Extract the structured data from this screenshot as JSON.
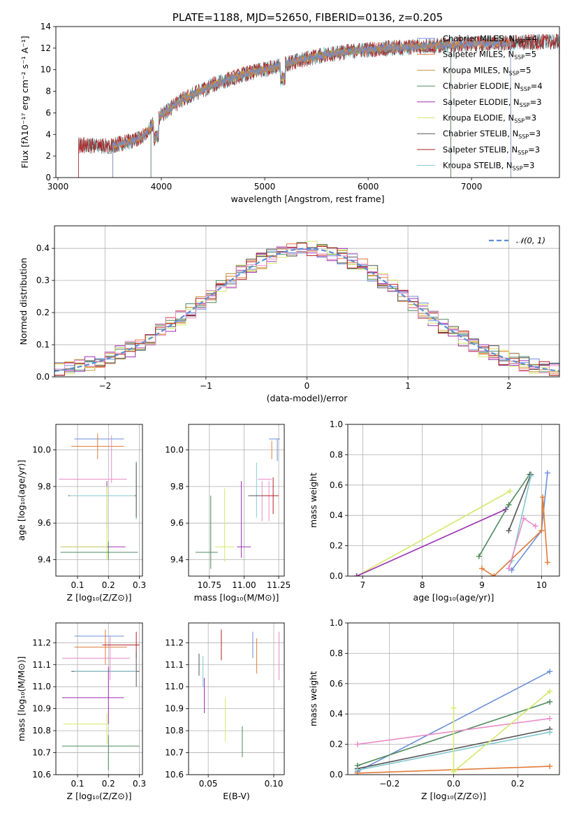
{
  "colors": {
    "Chabrier MILES": "#6a8fd8",
    "Salpeter MILES": "#e07b39",
    "Kroupa MILES": "#c49a3a",
    "Chabrier ELODIE": "#4f8a5c",
    "Salpeter ELODIE": "#9b30b0",
    "Kroupa ELODIE": "#d6e86a",
    "Chabrier STELIB": "#555555",
    "Salpeter STELIB": "#b22222",
    "Kroupa STELIB": "#80c8d0",
    "pink": "#e88cc8",
    "normal": "#5b8ed6"
  },
  "chart_data": [
    {
      "id": "spectrum",
      "type": "line",
      "title": "PLATE=1188, MJD=52650, FIBERID=0136, z=0.205",
      "xlabel": "wavelength [Angstrom, rest frame]",
      "ylabel": "Flux [fλ10⁻¹⁷ erg cm⁻² s⁻¹ A⁻¹]",
      "xlim": [
        2980,
        7850
      ],
      "ylim": [
        0,
        14
      ],
      "xticks": [
        "3000",
        "4000",
        "5000",
        "6000",
        "7000"
      ],
      "xtick_values": [
        3000,
        4000,
        5000,
        6000,
        7000
      ],
      "yticks": [
        "0",
        "2",
        "4",
        "6",
        "8",
        "10",
        "12",
        "14"
      ],
      "ytick_values": [
        0,
        2,
        4,
        6,
        8,
        10,
        12,
        14
      ],
      "grid": false,
      "legend_position": "right",
      "legend": [
        {
          "label": "Chabrier MILES, N",
          "sub": "SSP",
          "suffix": "=4",
          "color_key": "Chabrier MILES"
        },
        {
          "label": "Salpeter MILES, N",
          "sub": "SSP",
          "suffix": "=5",
          "color_key": "Salpeter MILES"
        },
        {
          "label": "Kroupa MILES, N",
          "sub": "SSP",
          "suffix": "=5",
          "color_key": "Kroupa MILES"
        },
        {
          "label": "Chabrier ELODIE, N",
          "sub": "SSP",
          "suffix": "=4",
          "color_key": "Chabrier ELODIE"
        },
        {
          "label": "Salpeter ELODIE, N",
          "sub": "SSP",
          "suffix": "=3",
          "color_key": "Salpeter ELODIE"
        },
        {
          "label": "Kroupa ELODIE, N",
          "sub": "SSP",
          "suffix": "=3",
          "color_key": "Kroupa ELODIE"
        },
        {
          "label": "Chabrier STELIB, N",
          "sub": "SSP",
          "suffix": "=3",
          "color_key": "Chabrier STELIB"
        },
        {
          "label": "Salpeter STELIB, N",
          "sub": "SSP",
          "suffix": "=3",
          "color_key": "Salpeter STELIB"
        },
        {
          "label": "Kroupa STELIB, N",
          "sub": "SSP",
          "suffix": "=3",
          "color_key": "Kroupa STELIB"
        }
      ],
      "data_trend": {
        "wavelength": [
          3200,
          3500,
          3800,
          4000,
          4200,
          4500,
          4800,
          5000,
          5300,
          5600,
          5900,
          6200,
          6600,
          7000,
          7400,
          7800
        ],
        "flux": [
          3.0,
          2.9,
          3.6,
          5.8,
          7.2,
          8.6,
          9.6,
          10.0,
          10.8,
          11.4,
          11.8,
          12.0,
          12.2,
          12.4,
          12.5,
          12.6
        ]
      }
    },
    {
      "id": "residual-histogram",
      "type": "step",
      "xlabel": "(data-model)/error",
      "ylabel": "Normed distribution",
      "xlim": [
        -2.5,
        2.5
      ],
      "ylim": [
        0,
        0.47
      ],
      "xticks": [
        "−2",
        "−1",
        "0",
        "1",
        "2"
      ],
      "xtick_values": [
        -2,
        -1,
        0,
        1,
        2
      ],
      "yticks": [
        "0.0",
        "0.1",
        "0.2",
        "0.3",
        "0.4"
      ],
      "ytick_values": [
        0,
        0.1,
        0.2,
        0.3,
        0.4
      ],
      "grid": true,
      "legend_position": "top-right",
      "legend_label": "𝒩(0, 1)",
      "bin_width": 0.1
    },
    {
      "id": "age-vs-Z",
      "type": "errorbar",
      "xlabel": "Z [log₁₀(Z/Z⊙)]",
      "ylabel": "age  [log₁₀(age/yr)]",
      "xlim": [
        0.03,
        0.31
      ],
      "ylim": [
        9.31,
        10.14
      ],
      "xticks": [
        "0.1",
        "0.2",
        "0.3"
      ],
      "xtick_values": [
        0.1,
        0.2,
        0.3
      ],
      "yticks": [
        "9.4",
        "9.6",
        "9.8",
        "10.0"
      ],
      "ytick_values": [
        9.4,
        9.6,
        9.8,
        10.0
      ],
      "grid": true,
      "points": [
        {
          "x": 0.17,
          "xerr": 0.08,
          "y": 10.06,
          "yerr": 0.0,
          "c": "Chabrier MILES"
        },
        {
          "x": 0.165,
          "xerr": 0.085,
          "y": 10.02,
          "yerr": 0.07,
          "c": "Salpeter MILES"
        },
        {
          "x": 0.15,
          "xerr": 0.11,
          "y": 9.84,
          "yerr": 0.0,
          "c": "pink"
        },
        {
          "x": 0.21,
          "xerr": 0.0,
          "y": 9.95,
          "yerr": 0.13,
          "c": "pink"
        },
        {
          "x": 0.29,
          "xerr": 0.0,
          "y": 9.78,
          "yerr": 0.16,
          "c": "Kroupa STELIB"
        },
        {
          "x": 0.29,
          "xerr": 0.0,
          "y": 9.78,
          "yerr": 0.15,
          "c": "Chabrier STELIB"
        },
        {
          "x": 0.195,
          "xerr": 0.0,
          "y": 9.7,
          "yerr": 0.13,
          "c": "Salpeter ELODIE"
        },
        {
          "x": 0.18,
          "xerr": 0.11,
          "y": 9.75,
          "yerr": 0.0,
          "c": "Chabrier STELIB"
        },
        {
          "x": 0.18,
          "xerr": 0.105,
          "y": 9.75,
          "yerr": 0.0,
          "c": "Kroupa STELIB"
        },
        {
          "x": 0.15,
          "xerr": 0.105,
          "y": 9.47,
          "yerr": 0.0,
          "c": "Salpeter ELODIE"
        },
        {
          "x": 0.12,
          "xerr": 0.075,
          "y": 9.47,
          "yerr": 0.0,
          "c": "Kroupa ELODIE"
        },
        {
          "x": 0.195,
          "xerr": 0.0,
          "y": 9.6,
          "yerr": 0.2,
          "c": "Kroupa ELODIE"
        },
        {
          "x": 0.17,
          "xerr": 0.125,
          "y": 9.44,
          "yerr": 0.0,
          "c": "Chabrier ELODIE"
        },
        {
          "x": 0.2,
          "xerr": 0.0,
          "y": 9.45,
          "yerr": 0.05,
          "c": "Chabrier ELODIE"
        }
      ]
    },
    {
      "id": "age-vs-mass",
      "type": "errorbar",
      "xlabel": "mass [log₁₀(M/M⊙)]",
      "ylabel": "",
      "xlim": [
        10.6,
        11.29
      ],
      "ylim": [
        9.31,
        10.14
      ],
      "xticks": [
        "10.75",
        "11.00",
        "11.25"
      ],
      "xtick_values": [
        10.75,
        11.0,
        11.25
      ],
      "yticks": [
        "9.4",
        "9.6",
        "9.8",
        "10.0"
      ],
      "ytick_values": [
        9.4,
        9.6,
        9.8,
        10.0
      ],
      "grid": true,
      "points": [
        {
          "x": 11.22,
          "xerr": 0.04,
          "y": 10.06,
          "yerr": 0.0,
          "c": "Chabrier MILES"
        },
        {
          "x": 11.24,
          "xerr": 0.0,
          "y": 10.0,
          "yerr": 0.06,
          "c": "Chabrier MILES"
        },
        {
          "x": 11.2,
          "xerr": 0.0,
          "y": 10.0,
          "yerr": 0.05,
          "c": "Salpeter MILES"
        },
        {
          "x": 11.15,
          "xerr": 0.05,
          "y": 9.84,
          "yerr": 0.0,
          "c": "pink"
        },
        {
          "x": 11.13,
          "xerr": 0.0,
          "y": 9.72,
          "yerr": 0.11,
          "c": "pink"
        },
        {
          "x": 11.18,
          "xerr": 0.0,
          "y": 9.72,
          "yerr": 0.11,
          "c": "pink"
        },
        {
          "x": 11.09,
          "xerr": 0.0,
          "y": 9.78,
          "yerr": 0.15,
          "c": "Kroupa STELIB"
        },
        {
          "x": 11.19,
          "xerr": 0.06,
          "y": 9.75,
          "yerr": 0.0,
          "c": "Salpeter STELIB"
        },
        {
          "x": 11.21,
          "xerr": 0.0,
          "y": 9.75,
          "yerr": 0.1,
          "c": "Salpeter STELIB"
        },
        {
          "x": 11.08,
          "xerr": 0.05,
          "y": 9.75,
          "yerr": 0.0,
          "c": "Chabrier STELIB"
        },
        {
          "x": 10.98,
          "xerr": 0.0,
          "y": 9.62,
          "yerr": 0.21,
          "c": "Salpeter ELODIE"
        },
        {
          "x": 11.0,
          "xerr": 0.05,
          "y": 9.47,
          "yerr": 0.0,
          "c": "Salpeter ELODIE"
        },
        {
          "x": 10.86,
          "xerr": 0.0,
          "y": 9.59,
          "yerr": 0.2,
          "c": "Kroupa ELODIE"
        },
        {
          "x": 10.86,
          "xerr": 0.07,
          "y": 9.47,
          "yerr": 0.0,
          "c": "Kroupa ELODIE"
        },
        {
          "x": 10.76,
          "xerr": 0.0,
          "y": 9.55,
          "yerr": 0.2,
          "c": "Chabrier ELODIE"
        },
        {
          "x": 10.73,
          "xerr": 0.08,
          "y": 9.44,
          "yerr": 0.0,
          "c": "Chabrier ELODIE"
        }
      ]
    },
    {
      "id": "massweight-vs-age",
      "type": "line",
      "xlabel": "age  [log₁₀(age/yr)]",
      "ylabel": "mass weight",
      "xlim": [
        6.75,
        10.3
      ],
      "ylim": [
        0,
        1.0
      ],
      "xticks": [
        "7",
        "8",
        "9",
        "10"
      ],
      "xtick_values": [
        7,
        8,
        9,
        10
      ],
      "yticks": [
        "0.0",
        "0.2",
        "0.4",
        "0.6",
        "0.8",
        "1.0"
      ],
      "ytick_values": [
        0,
        0.2,
        0.4,
        0.6,
        0.8,
        1.0
      ],
      "grid": true,
      "series": [
        {
          "c": "Kroupa ELODIE",
          "x": [
            6.9,
            9.47
          ],
          "y": [
            0.0,
            0.56
          ]
        },
        {
          "c": "Salpeter ELODIE",
          "x": [
            6.9,
            9.4
          ],
          "y": [
            0.0,
            0.44
          ]
        },
        {
          "c": "Chabrier ELODIE",
          "x": [
            8.95,
            9.45,
            9.8
          ],
          "y": [
            0.13,
            0.47,
            0.67
          ]
        },
        {
          "c": "Chabrier STELIB",
          "x": [
            9.45,
            9.82
          ],
          "y": [
            0.3,
            0.67
          ]
        },
        {
          "c": "Kroupa STELIB",
          "x": [
            9.5,
            9.82
          ],
          "y": [
            0.1,
            0.66
          ]
        },
        {
          "c": "Chabrier MILES",
          "x": [
            9.5,
            10.0,
            10.1
          ],
          "y": [
            0.04,
            0.3,
            0.68
          ]
        },
        {
          "c": "Salpeter MILES",
          "x": [
            9.0,
            9.2,
            10.0,
            10.02,
            10.1
          ],
          "y": [
            0.05,
            0.0,
            0.3,
            0.52,
            0.09
          ]
        },
        {
          "c": "pink",
          "x": [
            9.45,
            9.7,
            9.9
          ],
          "y": [
            0.05,
            0.38,
            0.33
          ]
        }
      ]
    },
    {
      "id": "mass-vs-Z",
      "type": "errorbar",
      "xlabel": "Z [log₁₀(Z/Z⊙)]",
      "ylabel": "mass [log₁₀(M/M⊙)]",
      "xlim": [
        0.03,
        0.31
      ],
      "ylim": [
        10.6,
        11.29
      ],
      "xticks": [
        "0.1",
        "0.2",
        "0.3"
      ],
      "xtick_values": [
        0.1,
        0.2,
        0.3
      ],
      "yticks": [
        "10.6",
        "10.7",
        "10.8",
        "10.9",
        "11.0",
        "11.1",
        "11.2"
      ],
      "ytick_values": [
        10.6,
        10.7,
        10.8,
        10.9,
        11.0,
        11.1,
        11.2
      ],
      "grid": true,
      "points": [
        {
          "x": 0.17,
          "xerr": 0.08,
          "y": 11.23,
          "yerr": 0.0,
          "c": "Chabrier MILES"
        },
        {
          "x": 0.19,
          "xerr": 0.0,
          "y": 11.18,
          "yerr": 0.08,
          "c": "Salpeter MILES"
        },
        {
          "x": 0.175,
          "xerr": 0.085,
          "y": 11.18,
          "yerr": 0.0,
          "c": "Salpeter MILES"
        },
        {
          "x": 0.16,
          "xerr": 0.11,
          "y": 11.13,
          "yerr": 0.0,
          "c": "pink"
        },
        {
          "x": 0.205,
          "xerr": 0.0,
          "y": 11.13,
          "yerr": 0.1,
          "c": "pink"
        },
        {
          "x": 0.24,
          "xerr": 0.06,
          "y": 11.19,
          "yerr": 0.0,
          "c": "Salpeter STELIB"
        },
        {
          "x": 0.29,
          "xerr": 0.0,
          "y": 11.19,
          "yerr": 0.06,
          "c": "Salpeter STELIB"
        },
        {
          "x": 0.29,
          "xerr": 0.0,
          "y": 11.08,
          "yerr": 0.08,
          "c": "Chabrier STELIB"
        },
        {
          "x": 0.19,
          "xerr": 0.11,
          "y": 11.07,
          "yerr": 0.0,
          "c": "Chabrier STELIB"
        },
        {
          "x": 0.19,
          "xerr": 0.1,
          "y": 11.07,
          "yerr": 0.0,
          "c": "Kroupa STELIB"
        },
        {
          "x": 0.15,
          "xerr": 0.1,
          "y": 10.95,
          "yerr": 0.0,
          "c": "Salpeter ELODIE"
        },
        {
          "x": 0.2,
          "xerr": 0.0,
          "y": 10.96,
          "yerr": 0.13,
          "c": "Salpeter ELODIE"
        },
        {
          "x": 0.125,
          "xerr": 0.07,
          "y": 10.83,
          "yerr": 0.0,
          "c": "Kroupa ELODIE"
        },
        {
          "x": 0.195,
          "xerr": 0.0,
          "y": 10.81,
          "yerr": 0.07,
          "c": "Kroupa ELODIE"
        },
        {
          "x": 0.175,
          "xerr": 0.125,
          "y": 10.73,
          "yerr": 0.0,
          "c": "Chabrier ELODIE"
        },
        {
          "x": 0.2,
          "xerr": 0.0,
          "y": 10.7,
          "yerr": 0.08,
          "c": "Chabrier ELODIE"
        }
      ]
    },
    {
      "id": "mass-vs-EBV",
      "type": "errorbar",
      "xlabel": "E(B-V)",
      "ylabel": "",
      "xlim": [
        0.035,
        0.108
      ],
      "ylim": [
        10.6,
        11.29
      ],
      "xticks": [
        "0.05",
        "0.10"
      ],
      "xtick_values": [
        0.05,
        0.1
      ],
      "yticks": [
        "10.6",
        "10.7",
        "10.8",
        "10.9",
        "11.0",
        "11.1",
        "11.2"
      ],
      "ytick_values": [
        10.6,
        10.7,
        10.8,
        10.9,
        11.0,
        11.1,
        11.2
      ],
      "grid": true,
      "points": [
        {
          "x": 0.043,
          "xerr": 0.0,
          "y": 11.1,
          "yerr": 0.05,
          "c": "Chabrier STELIB"
        },
        {
          "x": 0.046,
          "xerr": 0.0,
          "y": 11.07,
          "yerr": 0.07,
          "c": "Kroupa STELIB"
        },
        {
          "x": 0.047,
          "xerr": 0.0,
          "y": 10.96,
          "yerr": 0.08,
          "c": "Salpeter ELODIE"
        },
        {
          "x": 0.06,
          "xerr": 0.0,
          "y": 11.19,
          "yerr": 0.07,
          "c": "Salpeter STELIB"
        },
        {
          "x": 0.063,
          "xerr": 0.0,
          "y": 10.85,
          "yerr": 0.1,
          "c": "Kroupa ELODIE"
        },
        {
          "x": 0.076,
          "xerr": 0.0,
          "y": 10.75,
          "yerr": 0.07,
          "c": "Chabrier ELODIE"
        },
        {
          "x": 0.084,
          "xerr": 0.0,
          "y": 11.19,
          "yerr": 0.06,
          "c": "Chabrier MILES"
        },
        {
          "x": 0.087,
          "xerr": 0.0,
          "y": 11.14,
          "yerr": 0.08,
          "c": "Salpeter MILES"
        },
        {
          "x": 0.104,
          "xerr": 0.0,
          "y": 11.14,
          "yerr": 0.11,
          "c": "pink"
        }
      ]
    },
    {
      "id": "massweight-vs-Z",
      "type": "line",
      "xlabel": "Z [log₁₀(Z/Z⊙)]",
      "ylabel": "mass weight",
      "xlim": [
        -0.33,
        0.33
      ],
      "ylim": [
        0,
        1.0
      ],
      "xticks": [
        "−0.2",
        "0.0",
        "0.2"
      ],
      "xtick_values": [
        -0.2,
        0.0,
        0.2
      ],
      "yticks": [
        "0.0",
        "0.2",
        "0.4",
        "0.6",
        "0.8",
        "1.0"
      ],
      "ytick_values": [
        0,
        0.2,
        0.4,
        0.6,
        0.8,
        1.0
      ],
      "grid": true,
      "series": [
        {
          "c": "Chabrier MILES",
          "x": [
            -0.3,
            0.3
          ],
          "y": [
            0.02,
            0.68
          ]
        },
        {
          "c": "Chabrier ELODIE",
          "x": [
            -0.3,
            0.3
          ],
          "y": [
            0.06,
            0.48
          ]
        },
        {
          "c": "pink",
          "x": [
            -0.3,
            0.3
          ],
          "y": [
            0.2,
            0.37
          ]
        },
        {
          "c": "Chabrier STELIB",
          "x": [
            -0.3,
            0.3
          ],
          "y": [
            0.04,
            0.3
          ]
        },
        {
          "c": "Kroupa STELIB",
          "x": [
            -0.3,
            0.3
          ],
          "y": [
            0.03,
            0.28
          ]
        },
        {
          "c": "Salpeter MILES",
          "x": [
            -0.3,
            0.3
          ],
          "y": [
            0.01,
            0.055
          ]
        },
        {
          "c": "Kroupa ELODIE",
          "x": [
            0.0,
            0.3
          ],
          "y": [
            0.02,
            0.55
          ]
        },
        {
          "c": "Kroupa ELODIE",
          "x": [
            0.0,
            0.0
          ],
          "y": [
            0.03,
            0.44
          ]
        }
      ]
    }
  ]
}
